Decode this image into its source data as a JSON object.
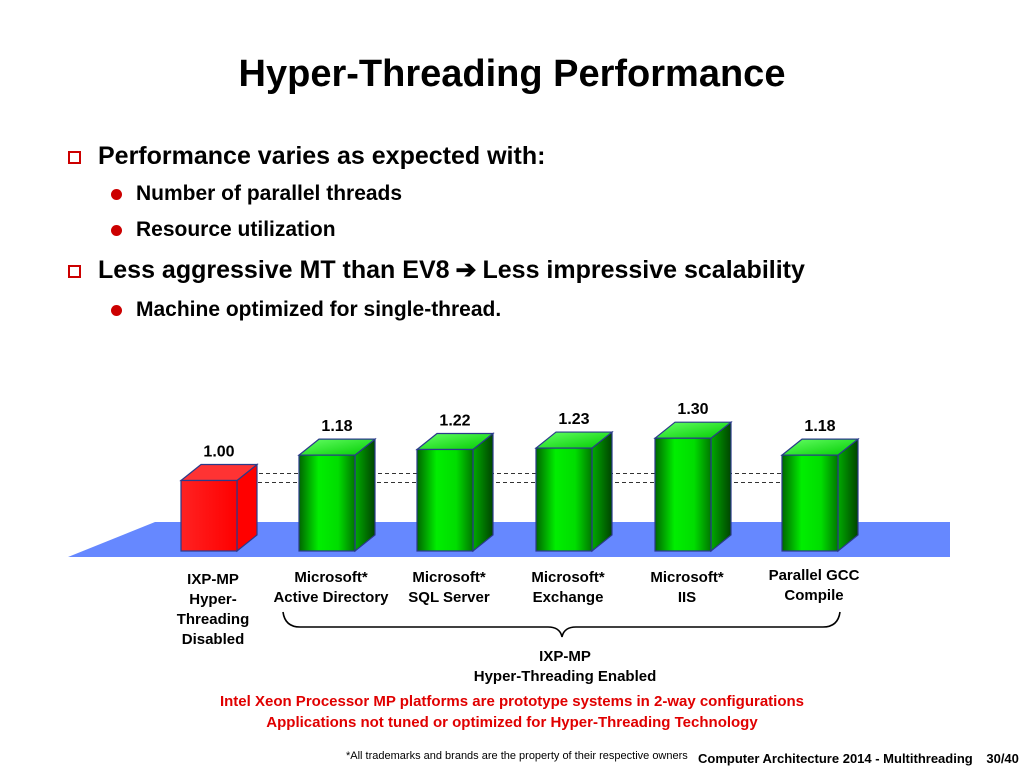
{
  "slide": {
    "title": "Hyper-Threading Performance",
    "bullets": {
      "b1": "Performance varies as expected with:",
      "b1_sub1": "Number of parallel threads",
      "b1_sub2": "Resource utilization",
      "b2_part1": "Less aggressive MT than EV8",
      "b2_arrow": "➔",
      "b2_part2": "Less impressive scalability",
      "b2_sub1": "Machine optimized for single-thread."
    },
    "group_label": [
      "IXP-MP",
      "Hyper-Threading Enabled"
    ],
    "notes": [
      "Intel Xeon Processor MP platforms are prototype systems in 2-way configurations",
      "Applications not tuned or optimized for Hyper-Threading Technology"
    ],
    "trademark": "*All trademarks and brands are the property of their respective owners",
    "footer": "Computer Architecture 2014 - Multithreading",
    "page": "30/40"
  },
  "colors": {
    "baseline_bar": "#ff0000",
    "ht_bars": "#00cc00",
    "floor": "#6688ff",
    "notes": "#e00000",
    "bullet_marks": "#cc0000"
  },
  "chart_data": {
    "type": "bar",
    "title": "",
    "xlabel": "",
    "ylabel": "",
    "categories": [
      [
        "IXP-MP",
        "Hyper-",
        "Threading",
        "Disabled"
      ],
      [
        "Microsoft*",
        "Active Directory"
      ],
      [
        "Microsoft*",
        "SQL Server"
      ],
      [
        "Microsoft*",
        "Exchange"
      ],
      [
        "Microsoft*",
        "IIS"
      ],
      [
        "Parallel GCC",
        "Compile"
      ]
    ],
    "values": [
      1.0,
      1.18,
      1.22,
      1.23,
      1.3,
      1.18
    ],
    "value_labels": [
      "1.00",
      "1.18",
      "1.22",
      "1.23",
      "1.30",
      "1.18"
    ],
    "bar_colors": [
      "#ff0000",
      "#00cc00",
      "#00cc00",
      "#00cc00",
      "#00cc00",
      "#00cc00"
    ],
    "reference_lines": [
      1.0
    ],
    "style": "3d"
  }
}
